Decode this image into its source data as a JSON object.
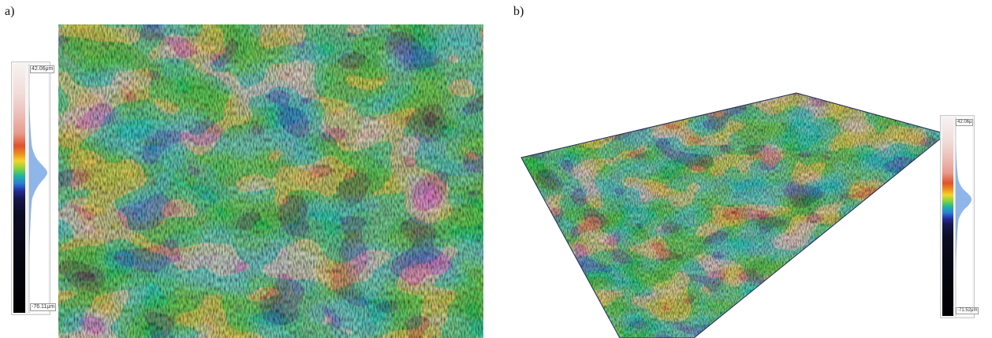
{
  "panels": {
    "a": {
      "label": "a)",
      "scale": {
        "max": "42.06μm",
        "min": "-76.11μm"
      }
    },
    "b": {
      "label": "b)",
      "scale": {
        "max": "42.06μ",
        "min": "-71.52μm"
      }
    }
  },
  "colors": {
    "high": "#f3e6e2",
    "orange": "#c4531f",
    "green": "#2fa65c",
    "blue": "#253fa6",
    "low": "#050510",
    "histogram": "#8fb6e8"
  }
}
